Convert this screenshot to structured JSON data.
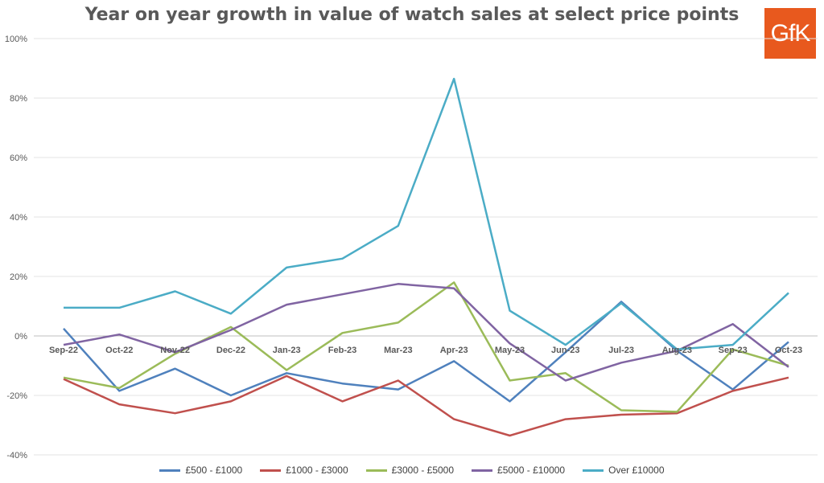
{
  "logo_text": "GfK",
  "chart_data": {
    "type": "line",
    "title": "Year on year growth in value of watch sales at select price points",
    "xlabel": "",
    "ylabel": "",
    "ylim": [
      -40,
      100
    ],
    "y_ticks": [
      100,
      80,
      60,
      40,
      20,
      0,
      -20,
      -40
    ],
    "y_tick_labels": [
      "100%",
      "80%",
      "60%",
      "40%",
      "20%",
      "0%",
      "-20%",
      "-40%"
    ],
    "grid": true,
    "legend_position": "bottom",
    "categories": [
      "Sep-22",
      "Oct-22",
      "Nov-22",
      "Dec-22",
      "Jan-23",
      "Feb-23",
      "Mar-23",
      "Apr-23",
      "May-23",
      "Jun-23",
      "Jul-23",
      "Aug-23",
      "Sep-23",
      "Oct-23"
    ],
    "series": [
      {
        "name": "£500 - £1000",
        "color": "#4F81BD",
        "values": [
          2.5,
          -18.5,
          -11,
          -20,
          -12.5,
          -16,
          -18,
          -8.5,
          -22,
          -5.5,
          11.5,
          -5,
          -18,
          -2
        ]
      },
      {
        "name": "£1000 - £3000",
        "color": "#C0504D",
        "values": [
          -14.5,
          -23,
          -26,
          -22,
          -13.5,
          -22,
          -15,
          -28,
          -33.5,
          -28,
          -26.5,
          -26,
          -18.5,
          -14
        ]
      },
      {
        "name": "£3000 - £5000",
        "color": "#9BBB59",
        "values": [
          -14,
          -17.5,
          -6,
          3,
          -11.5,
          1,
          4.5,
          18,
          -15,
          -12.5,
          -25,
          -25.5,
          -4.5,
          -10
        ]
      },
      {
        "name": "£5000 - £10000",
        "color": "#8064A2",
        "values": [
          -3,
          0.5,
          -5.5,
          2,
          10.5,
          14,
          17.5,
          16,
          -2.5,
          -15,
          -9,
          -5,
          4,
          -10.5
        ]
      },
      {
        "name": "Over £10000",
        "color": "#4BACC6",
        "values": [
          9.5,
          9.5,
          15,
          7.5,
          23,
          26,
          37,
          86.5,
          8.5,
          -3,
          11,
          -4.5,
          -3,
          14.5
        ]
      }
    ]
  }
}
